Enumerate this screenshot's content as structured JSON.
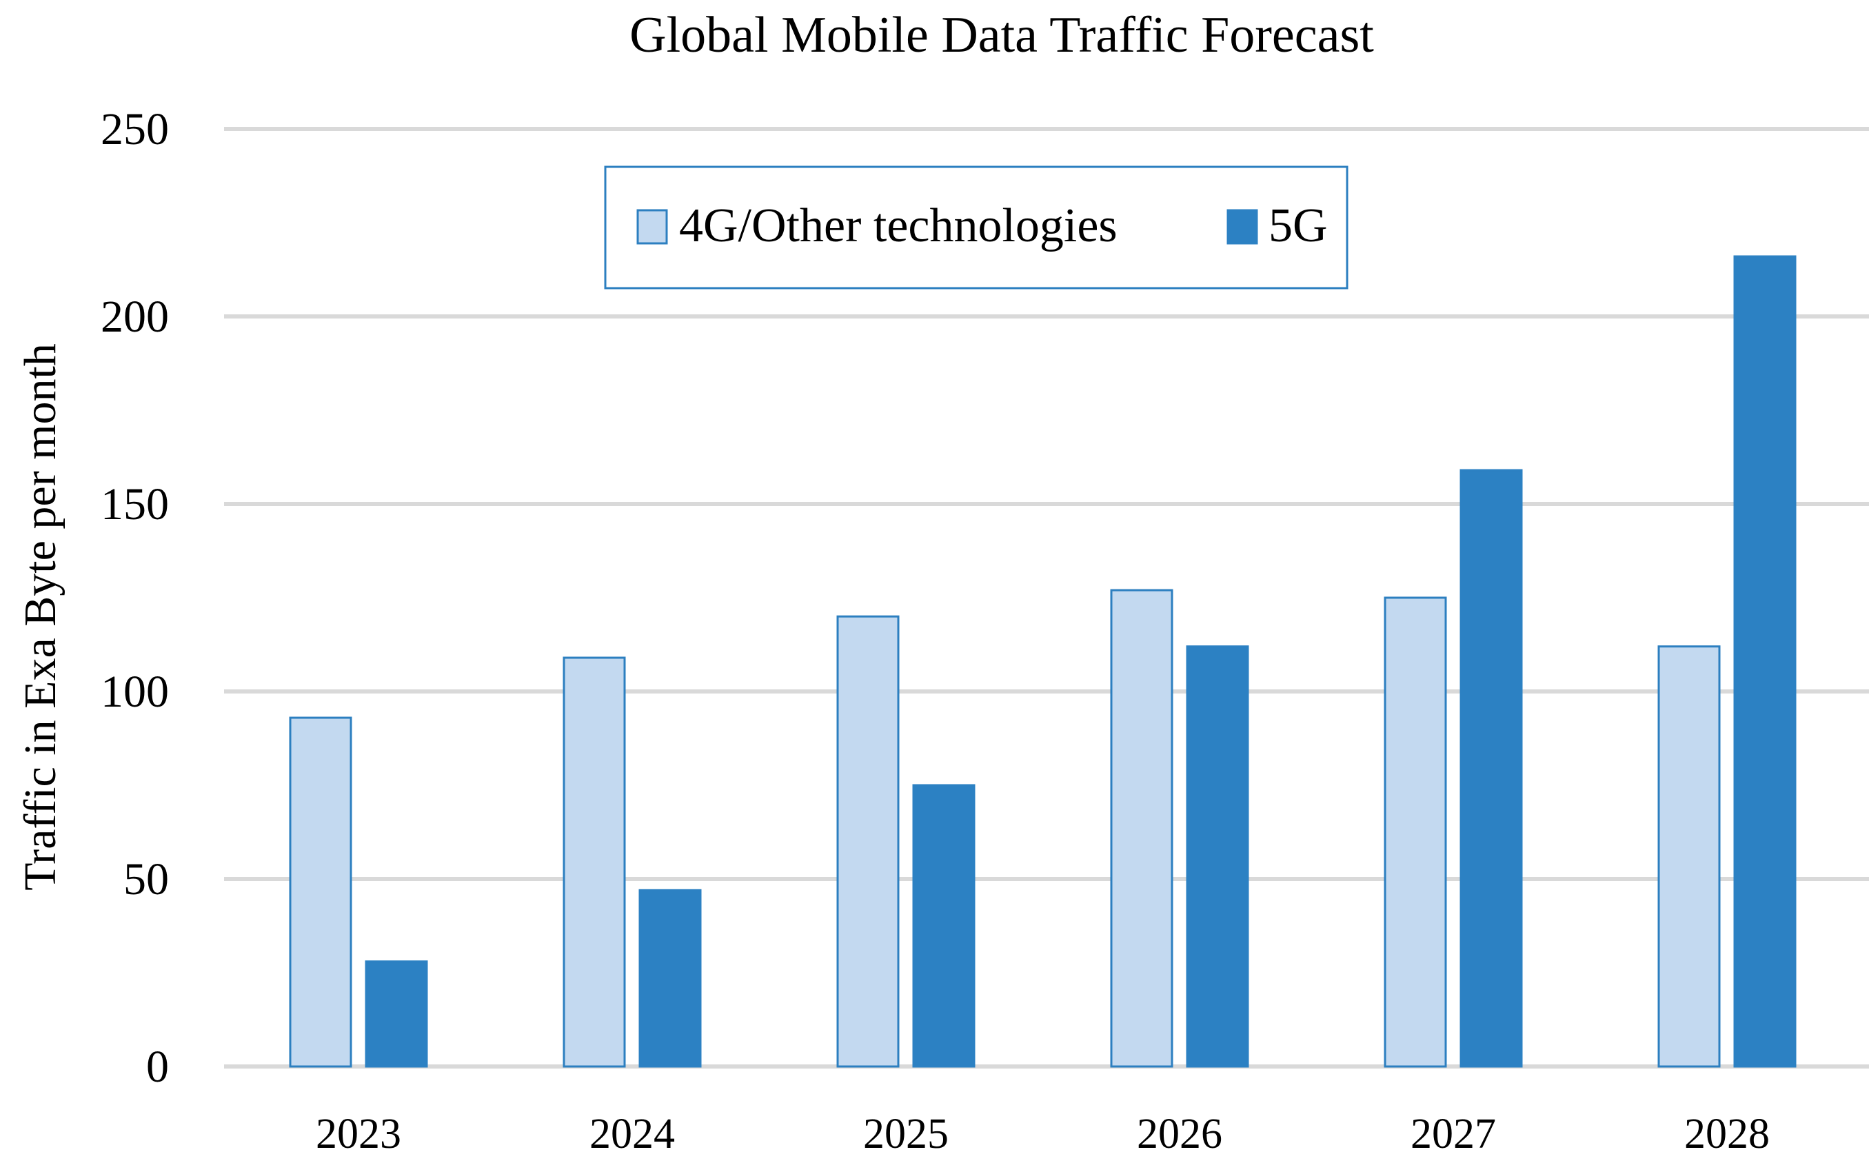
{
  "chart_data": {
    "type": "bar",
    "title": "Global Mobile Data Traffic Forecast",
    "xlabel": "",
    "ylabel": "Traffic in Exa Byte per month",
    "categories": [
      "2023",
      "2024",
      "2025",
      "2026",
      "2027",
      "2028"
    ],
    "series": [
      {
        "name": "4G/Other technologies",
        "values": [
          93,
          109,
          120,
          127,
          125,
          112
        ],
        "fill": "#c3d9f0",
        "stroke": "#2c7fc0"
      },
      {
        "name": "5G",
        "values": [
          28,
          47,
          75,
          112,
          159,
          216
        ],
        "fill": "#2c81c3",
        "stroke": "#2c81c3"
      }
    ],
    "ylim": [
      0,
      250
    ],
    "yticks": [
      "0",
      "50",
      "100",
      "150",
      "200",
      "250"
    ],
    "grid": true,
    "legend_position": "top-center"
  },
  "colors": {
    "grid": "#d9d9d9",
    "legend_border": "#2c7fc0"
  }
}
